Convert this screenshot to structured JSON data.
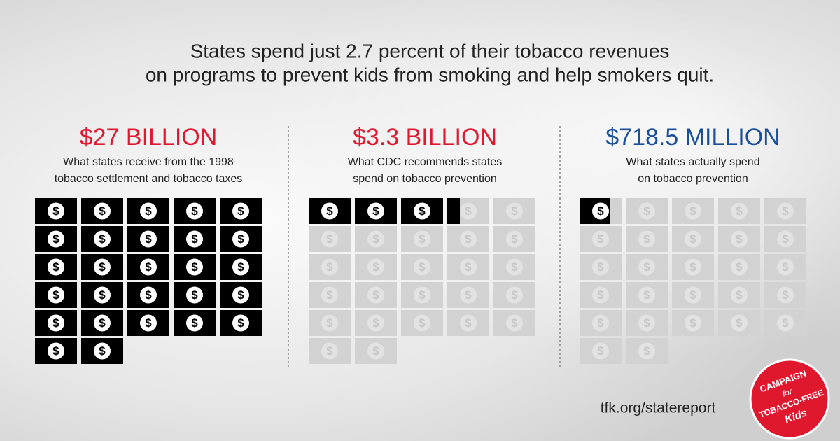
{
  "title_lines": [
    "States spend just 2.7 percent of their tobacco revenues",
    "on programs to prevent kids from smoking and help smokers quit."
  ],
  "bill_symbol": "$",
  "panels": [
    {
      "heading": "$27 BILLION",
      "value": 27,
      "color": "#e0182d",
      "description": [
        "What states receive from the 1998",
        "tobacco settlement and tobacco taxes"
      ]
    },
    {
      "heading": "$3.3 BILLION",
      "value": 3.3,
      "color": "#e0182d",
      "description": [
        "What CDC recommends states",
        "spend on tobacco prevention"
      ]
    },
    {
      "heading": "$718.5 MILLION",
      "value": 0.7185,
      "color": "#1b4f9c",
      "description": [
        "What states actually spend",
        "on tobacco prevention"
      ]
    }
  ],
  "url": "tfk.org/statereport",
  "logo": [
    "CAMPAIGN",
    "for",
    "TOBACCO-FREE",
    "Kids"
  ]
}
